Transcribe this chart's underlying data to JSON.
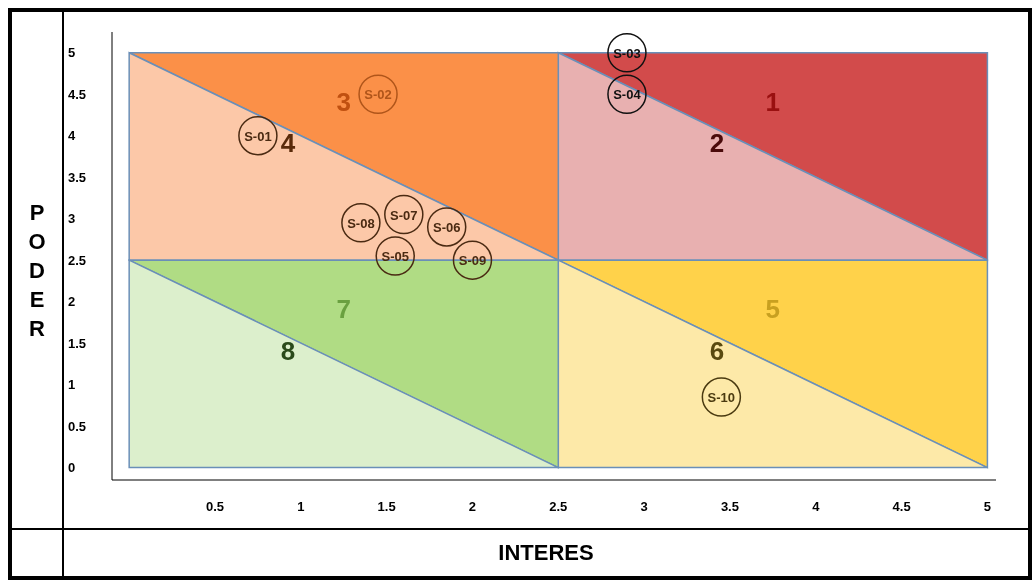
{
  "chart_data": {
    "type": "scatter",
    "xlabel": "INTERES",
    "ylabel": "PODER",
    "xlim": [
      -0.1,
      5.05
    ],
    "ylim": [
      -0.15,
      5.25
    ],
    "xticks": [
      0.5,
      1,
      1.5,
      2,
      2.5,
      3,
      3.5,
      4,
      4.5,
      5
    ],
    "yticks": [
      0,
      0.5,
      1,
      1.5,
      2,
      2.5,
      3,
      3.5,
      4,
      4.5,
      5
    ],
    "grid": false,
    "marker": "circle",
    "annotations": [
      "1",
      "2",
      "3",
      "4",
      "5",
      "6",
      "7",
      "8"
    ],
    "series": [
      {
        "x": [
          0.75,
          1.45,
          2.9,
          2.9,
          1.55,
          1.85,
          1.6,
          1.35,
          2.0,
          3.45
        ],
        "values": [
          4.0,
          4.5,
          5.0,
          4.5,
          2.55,
          2.9,
          3.05,
          2.95,
          2.5,
          0.85
        ],
        "value_labels": [
          "S-01",
          "S-02",
          "S-03",
          "S-04",
          "S-05",
          "S-06",
          "S-07",
          "S-08",
          "S-09",
          "S-10"
        ],
        "colors": [
          "#4a2a12",
          "#b0551a",
          "#111111",
          "#111111",
          "#4a2a12",
          "#4a2a12",
          "#4a2a12",
          "#4a2a12",
          "#4a2a12",
          "#4a3a10"
        ]
      }
    ]
  }
}
